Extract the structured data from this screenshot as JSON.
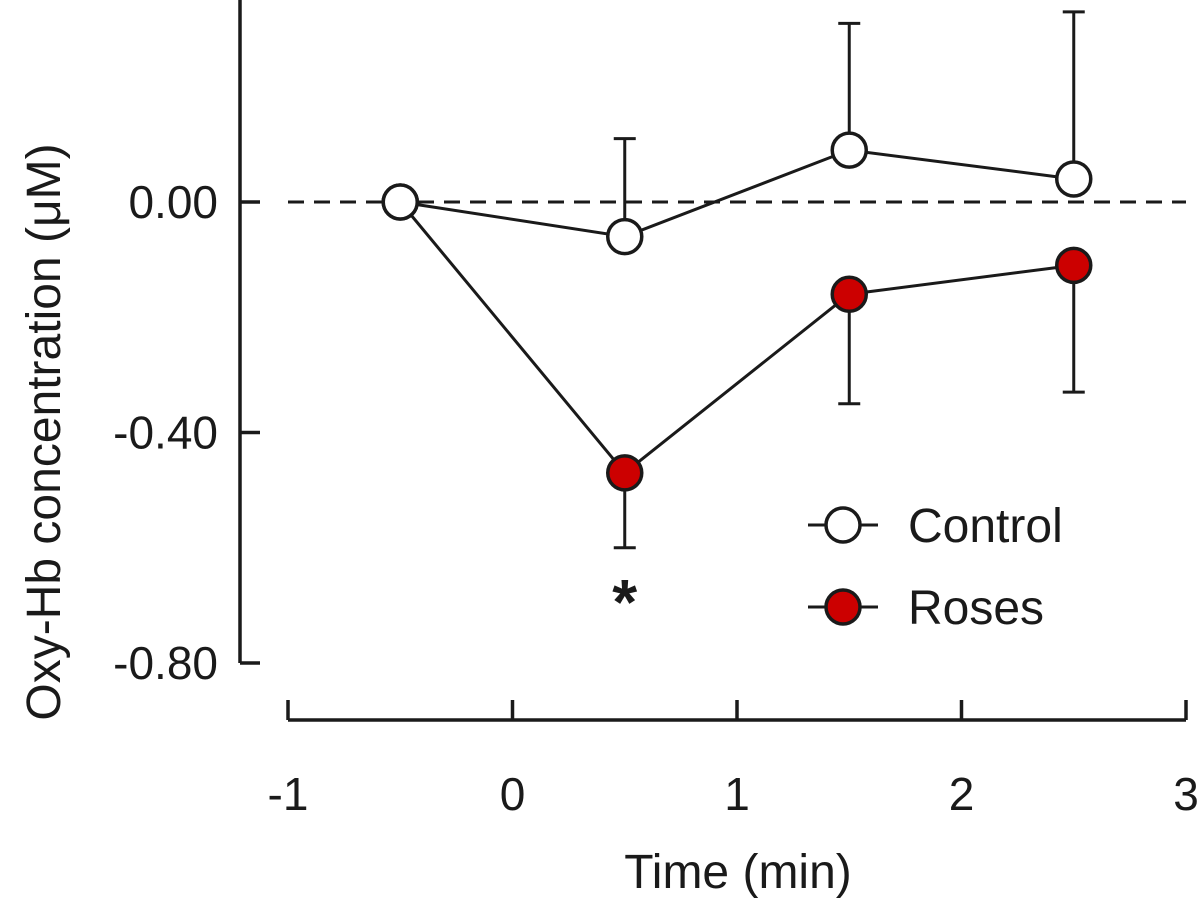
{
  "chart_data": {
    "type": "line",
    "xlabel": "Time (min)",
    "ylabel": "Oxy-Hb concentration (μM)",
    "xlim": [
      -1,
      3
    ],
    "ylim": [
      -0.8,
      0.35
    ],
    "x_ticks": [
      "-1",
      "0",
      "1",
      "2",
      "3"
    ],
    "y_ticks": [
      "0.00",
      "-0.40",
      "-0.80"
    ],
    "reference_line_y": 0.0,
    "legend_position": "bottom-right",
    "series": [
      {
        "name": "Control",
        "marker": "open-circle",
        "color": "#ffffff",
        "x": [
          -0.5,
          0.5,
          1.5,
          2.5
        ],
        "y": [
          0.0,
          -0.06,
          0.09,
          0.04
        ],
        "error_upper": [
          null,
          0.11,
          0.31,
          0.33
        ]
      },
      {
        "name": "Roses",
        "marker": "filled-circle",
        "color": "#cc0000",
        "x": [
          -0.5,
          0.5,
          1.5,
          2.5
        ],
        "y": [
          0.0,
          -0.47,
          -0.16,
          -0.11
        ],
        "error_lower": [
          null,
          -0.6,
          -0.35,
          -0.33
        ]
      }
    ],
    "annotations": [
      {
        "text": "*",
        "x": 0.5,
        "y": -0.67
      }
    ]
  }
}
